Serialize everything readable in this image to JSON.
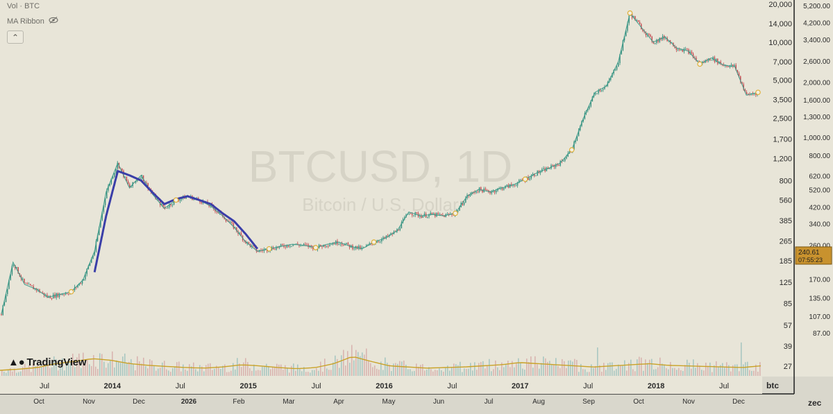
{
  "header": {
    "volume_label": "Vol · BTC",
    "ribbon_label": "MA Ribbon",
    "collapse_icon": "chevron-up-icon"
  },
  "watermark": {
    "symbol": "BTCUSD, 1D",
    "description": "Bitcoin / U.S. Dollar"
  },
  "logo": {
    "text": "TradingView"
  },
  "corner": {
    "top_label": "btc",
    "bottom_label": "zec"
  },
  "price_tag": {
    "value": "240.61",
    "countdown": "07:55:23",
    "color": "#c8922e"
  },
  "colors": {
    "background": "#e8e5d8",
    "ma_blue": "#3a3ea8",
    "ma_teal": "#3a9a8a",
    "candle_up": "#2e8b7a",
    "candle_down": "#c0444a",
    "volume_ma": "#c9a227",
    "marker": "#e0b03a"
  },
  "chart_data": {
    "type": "line",
    "y_scale": "log",
    "primary_axis": {
      "ticks": [
        "20,000",
        "14,000",
        "10,000",
        "7,000",
        "5,000",
        "3,500",
        "2,500",
        "1,700",
        "1,200",
        "800",
        "560",
        "385",
        "265",
        "185",
        "125",
        "85",
        "57",
        "39",
        "27"
      ],
      "values": [
        20000,
        14000,
        10000,
        7000,
        5000,
        3500,
        2500,
        1700,
        1200,
        800,
        560,
        385,
        265,
        185,
        125,
        85,
        57,
        39,
        27
      ]
    },
    "secondary_axis": {
      "ticks": [
        "5,200.00",
        "4,200.00",
        "3,400.00",
        "2,600.00",
        "2,000.00",
        "1,600.00",
        "1,300.00",
        "1,000.00",
        "800.00",
        "620.00",
        "520.00",
        "420.00",
        "340.00",
        "260.00",
        "170.00",
        "135.00",
        "107.00",
        "87.00"
      ],
      "values": [
        5200,
        4200,
        3400,
        2600,
        2000,
        1600,
        1300,
        1000,
        800,
        620,
        520,
        420,
        340,
        260,
        170,
        135,
        107,
        87
      ]
    },
    "x_top_labels": [
      "Jul",
      "2014",
      "Jul",
      "2015",
      "Jul",
      "2016",
      "Jul",
      "2017",
      "Jul",
      "2018",
      "Jul"
    ],
    "x_bottom_labels": [
      "Oct",
      "Nov",
      "Dec",
      "2026",
      "Feb",
      "Mar",
      "Apr",
      "May",
      "Jun",
      "Jul",
      "Aug",
      "Sep",
      "Oct",
      "Nov",
      "Dec"
    ],
    "series": [
      {
        "name": "BTCUSD",
        "t": [
          0,
          1,
          2,
          3,
          4,
          5,
          6,
          7,
          8,
          9,
          10,
          11,
          12,
          13,
          14,
          15,
          16,
          17,
          18,
          19,
          20,
          21,
          22,
          23,
          24,
          25,
          26,
          27,
          28,
          29,
          30,
          31,
          32,
          33,
          34,
          35,
          36,
          37,
          38,
          39,
          40,
          41,
          42,
          43,
          44,
          45,
          46,
          47,
          48,
          49,
          50,
          51,
          52,
          53,
          54,
          55,
          56,
          57,
          58,
          59,
          60,
          61,
          62,
          63,
          64,
          65
        ],
        "values": [
          70,
          180,
          120,
          110,
          95,
          100,
          105,
          130,
          220,
          650,
          1100,
          700,
          880,
          620,
          480,
          560,
          600,
          560,
          500,
          420,
          340,
          260,
          220,
          230,
          240,
          250,
          245,
          235,
          250,
          260,
          240,
          230,
          260,
          280,
          320,
          450,
          420,
          430,
          420,
          440,
          600,
          680,
          650,
          700,
          740,
          820,
          920,
          1000,
          1100,
          1400,
          2500,
          4000,
          4500,
          7000,
          17000,
          13000,
          10000,
          11000,
          9000,
          8500,
          6700,
          7500,
          6600,
          6400,
          3800,
          4000
        ]
      },
      {
        "name": "MA",
        "t": [
          8,
          9,
          10,
          11,
          12,
          13,
          14,
          15,
          16,
          17,
          18,
          19,
          20,
          21,
          22
        ],
        "values": [
          150,
          420,
          950,
          880,
          800,
          640,
          520,
          570,
          600,
          560,
          520,
          440,
          380,
          300,
          230
        ]
      }
    ],
    "markers_t": [
      6,
      15,
      23,
      27,
      32,
      39,
      45,
      49,
      54,
      60,
      65
    ],
    "volume": {
      "note": "volume histogram with moving average",
      "ma_values": [
        1,
        1.2,
        1.5,
        2.2,
        2.6,
        3.1,
        2.8,
        2.2,
        1.9,
        1.7,
        1.5,
        1.4,
        1.6,
        2.0,
        1.8,
        1.5,
        1.3,
        1.5,
        2.2,
        3.5,
        2.6,
        1.8,
        1.6,
        1.4,
        1.5,
        1.6,
        1.8,
        2.0,
        2.4,
        2.2,
        2.0,
        1.8,
        1.6,
        1.8,
        2.0,
        2.2,
        1.9,
        1.8,
        1.7,
        1.6,
        1.5,
        1.8
      ]
    }
  }
}
